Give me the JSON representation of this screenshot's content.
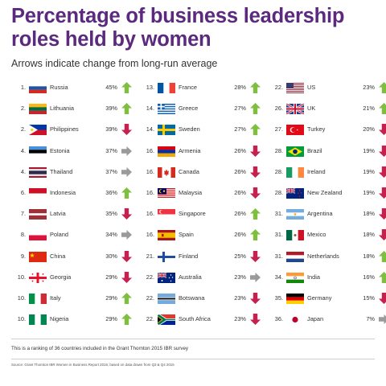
{
  "title": "Percentage of business leadership roles held by women",
  "subtitle": "Arrows indicate change from long-run average",
  "footnote": "This is a ranking of 36 countries included in the Grant Thornton 2015 IBR survey",
  "source": "Source: Grant Thornton IBR Women in Business Report 2016; based on data drawn from Q3 & Q4 2015",
  "colors": {
    "title": "#5b2a7e",
    "up": "#7fbf3f",
    "down": "#c8204e",
    "flat": "#9a9a9a"
  },
  "chart_data": {
    "type": "table",
    "columns": [
      "rank",
      "country",
      "percentage",
      "change"
    ],
    "rows": [
      {
        "rank": "1.",
        "country": "Russia",
        "pct": "45%",
        "value": 45,
        "change": "up",
        "flag": "russia"
      },
      {
        "rank": "2.",
        "country": "Lithuania",
        "pct": "39%",
        "value": 39,
        "change": "up",
        "flag": "lithuania"
      },
      {
        "rank": "2.",
        "country": "Philippines",
        "pct": "39%",
        "value": 39,
        "change": "down",
        "flag": "philippines"
      },
      {
        "rank": "4.",
        "country": "Estonia",
        "pct": "37%",
        "value": 37,
        "change": "flat",
        "flag": "estonia"
      },
      {
        "rank": "4.",
        "country": "Thailand",
        "pct": "37%",
        "value": 37,
        "change": "flat",
        "flag": "thailand"
      },
      {
        "rank": "6.",
        "country": "Indonesia",
        "pct": "36%",
        "value": 36,
        "change": "up",
        "flag": "indonesia"
      },
      {
        "rank": "7.",
        "country": "Latvia",
        "pct": "35%",
        "value": 35,
        "change": "down",
        "flag": "latvia"
      },
      {
        "rank": "8.",
        "country": "Poland",
        "pct": "34%",
        "value": 34,
        "change": "flat",
        "flag": "poland"
      },
      {
        "rank": "9.",
        "country": "China",
        "pct": "30%",
        "value": 30,
        "change": "down",
        "flag": "china"
      },
      {
        "rank": "10.",
        "country": "Georgia",
        "pct": "29%",
        "value": 29,
        "change": "down",
        "flag": "georgia"
      },
      {
        "rank": "10.",
        "country": "Italy",
        "pct": "29%",
        "value": 29,
        "change": "up",
        "flag": "italy"
      },
      {
        "rank": "10.",
        "country": "Nigeria",
        "pct": "29%",
        "value": 29,
        "change": "up",
        "flag": "nigeria"
      },
      {
        "rank": "13.",
        "country": "France",
        "pct": "28%",
        "value": 28,
        "change": "up",
        "flag": "france"
      },
      {
        "rank": "14.",
        "country": "Greece",
        "pct": "27%",
        "value": 27,
        "change": "up",
        "flag": "greece"
      },
      {
        "rank": "14.",
        "country": "Sweden",
        "pct": "27%",
        "value": 27,
        "change": "up",
        "flag": "sweden"
      },
      {
        "rank": "16.",
        "country": "Armenia",
        "pct": "26%",
        "value": 26,
        "change": "down",
        "flag": "armenia"
      },
      {
        "rank": "16.",
        "country": "Canada",
        "pct": "26%",
        "value": 26,
        "change": "down",
        "flag": "canada"
      },
      {
        "rank": "16.",
        "country": "Malaysia",
        "pct": "26%",
        "value": 26,
        "change": "down",
        "flag": "malaysia"
      },
      {
        "rank": "16.",
        "country": "Singapore",
        "pct": "26%",
        "value": 26,
        "change": "up",
        "flag": "singapore"
      },
      {
        "rank": "16.",
        "country": "Spain",
        "pct": "26%",
        "value": 26,
        "change": "up",
        "flag": "spain"
      },
      {
        "rank": "21.",
        "country": "Finland",
        "pct": "25%",
        "value": 25,
        "change": "down",
        "flag": "finland"
      },
      {
        "rank": "22.",
        "country": "Australia",
        "pct": "23%",
        "value": 23,
        "change": "flat",
        "flag": "australia"
      },
      {
        "rank": "22.",
        "country": "Botswana",
        "pct": "23%",
        "value": 23,
        "change": "down",
        "flag": "botswana"
      },
      {
        "rank": "22.",
        "country": "South Africa",
        "pct": "23%",
        "value": 23,
        "change": "down",
        "flag": "southafrica"
      },
      {
        "rank": "22.",
        "country": "US",
        "pct": "23%",
        "value": 23,
        "change": "up",
        "flag": "us"
      },
      {
        "rank": "26.",
        "country": "UK",
        "pct": "21%",
        "value": 21,
        "change": "up",
        "flag": "uk"
      },
      {
        "rank": "27.",
        "country": "Turkey",
        "pct": "20%",
        "value": 20,
        "change": "down",
        "flag": "turkey"
      },
      {
        "rank": "28.",
        "country": "Brazil",
        "pct": "19%",
        "value": 19,
        "change": "down",
        "flag": "brazil"
      },
      {
        "rank": "28.",
        "country": "Ireland",
        "pct": "19%",
        "value": 19,
        "change": "down",
        "flag": "ireland"
      },
      {
        "rank": "28.",
        "country": "New Zealand",
        "pct": "19%",
        "value": 19,
        "change": "down",
        "flag": "newzealand"
      },
      {
        "rank": "31.",
        "country": "Argentina",
        "pct": "18%",
        "value": 18,
        "change": "down",
        "flag": "argentina"
      },
      {
        "rank": "31.",
        "country": "Mexico",
        "pct": "18%",
        "value": 18,
        "change": "down",
        "flag": "mexico"
      },
      {
        "rank": "31.",
        "country": "Netherlands",
        "pct": "18%",
        "value": 18,
        "change": "up",
        "flag": "netherlands"
      },
      {
        "rank": "34.",
        "country": "India",
        "pct": "16%",
        "value": 16,
        "change": "up",
        "flag": "india"
      },
      {
        "rank": "35.",
        "country": "Germany",
        "pct": "15%",
        "value": 15,
        "change": "down",
        "flag": "germany"
      },
      {
        "rank": "36.",
        "country": "Japan",
        "pct": "7%",
        "value": 7,
        "change": "flat",
        "flag": "japan"
      }
    ]
  }
}
